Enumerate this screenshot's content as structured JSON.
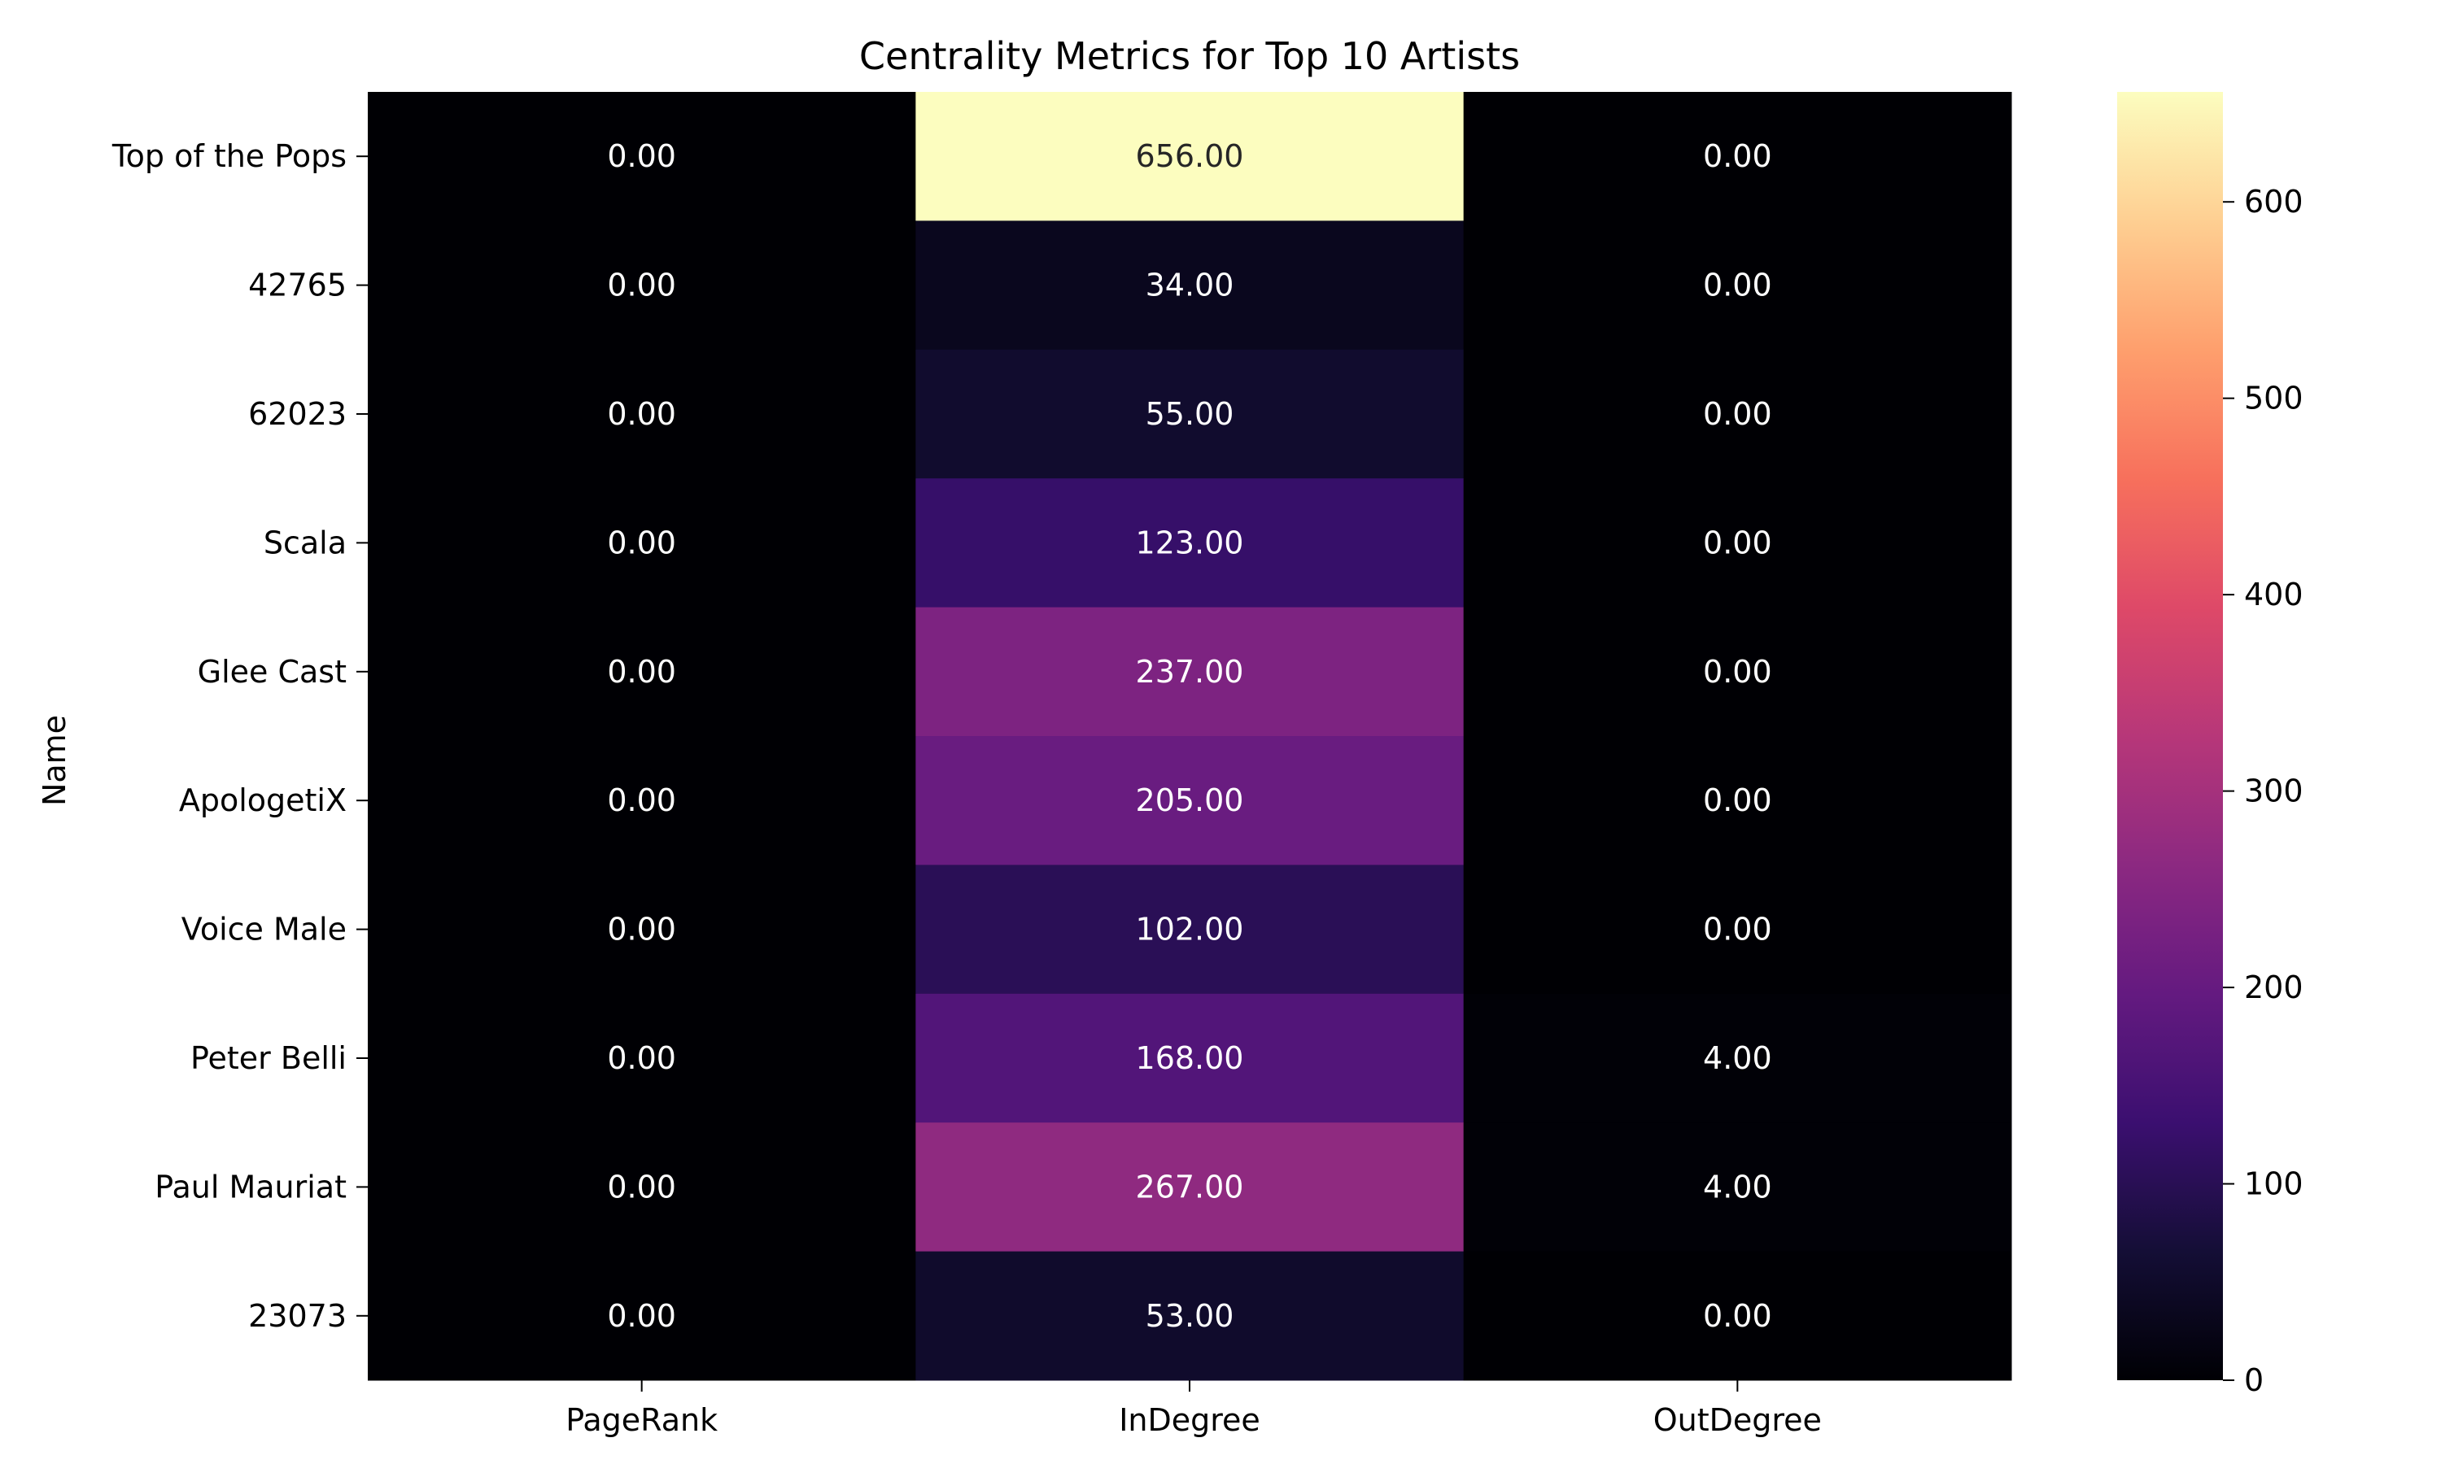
{
  "chart_data": {
    "type": "heatmap",
    "title": "Centrality Metrics for Top 10 Artists",
    "xlabel": "",
    "ylabel": "Name",
    "columns": [
      "PageRank",
      "InDegree",
      "OutDegree"
    ],
    "rows": [
      "Top of the Pops",
      "42765",
      "62023",
      "Scala",
      "Glee Cast",
      "ApologetiX",
      "Voice Male",
      "Peter Belli",
      "Paul Mauriat",
      "23073"
    ],
    "values": [
      [
        0,
        656,
        0
      ],
      [
        0,
        34,
        0
      ],
      [
        0,
        55,
        0
      ],
      [
        0,
        123,
        0
      ],
      [
        0,
        237,
        0
      ],
      [
        0,
        205,
        0
      ],
      [
        0,
        102,
        0
      ],
      [
        0,
        168,
        4
      ],
      [
        0,
        267,
        4
      ],
      [
        0,
        53,
        0
      ]
    ],
    "cell_labels": [
      [
        "0.00",
        "656.00",
        "0.00"
      ],
      [
        "0.00",
        "34.00",
        "0.00"
      ],
      [
        "0.00",
        "55.00",
        "0.00"
      ],
      [
        "0.00",
        "123.00",
        "0.00"
      ],
      [
        "0.00",
        "237.00",
        "0.00"
      ],
      [
        "0.00",
        "205.00",
        "0.00"
      ],
      [
        "0.00",
        "102.00",
        "0.00"
      ],
      [
        "0.00",
        "168.00",
        "4.00"
      ],
      [
        "0.00",
        "267.00",
        "4.00"
      ],
      [
        "0.00",
        "53.00",
        "0.00"
      ]
    ],
    "colormap": "magma",
    "colorbar": {
      "range": [
        0,
        656
      ],
      "ticks": [
        0,
        100,
        200,
        300,
        400,
        500,
        600
      ],
      "tick_labels": [
        "0",
        "100",
        "200",
        "300",
        "400",
        "500",
        "600"
      ]
    },
    "grid": false,
    "legend": "colorbar-right"
  }
}
